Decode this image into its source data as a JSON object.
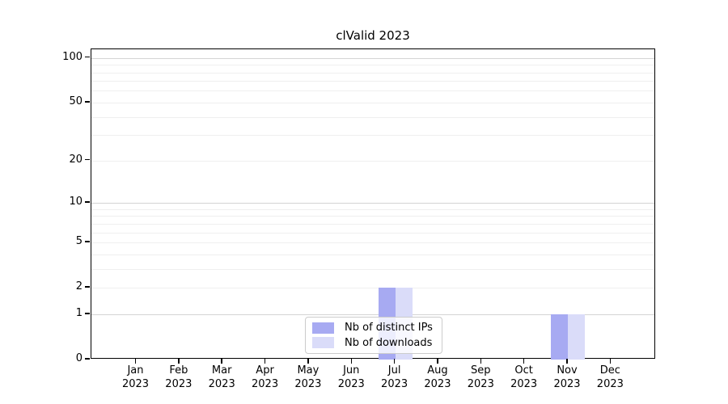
{
  "chart_data": {
    "type": "bar",
    "title": "clValid 2023",
    "months": [
      "Jan",
      "Feb",
      "Mar",
      "Apr",
      "May",
      "Jun",
      "Jul",
      "Aug",
      "Sep",
      "Oct",
      "Nov",
      "Dec"
    ],
    "year": "2023",
    "x_categories": [
      "Jan 2023",
      "Feb 2023",
      "Mar 2023",
      "Apr 2023",
      "May 2023",
      "Jun 2023",
      "Jul 2023",
      "Aug 2023",
      "Sep 2023",
      "Oct 2023",
      "Nov 2023",
      "Dec 2023"
    ],
    "series": [
      {
        "name": "Nb of distinct IPs",
        "color": "#a7aaf2",
        "values": [
          0,
          0,
          0,
          0,
          0,
          0,
          2,
          0,
          0,
          0,
          1,
          0
        ]
      },
      {
        "name": "Nb of downloads",
        "color": "#dadcf9",
        "values": [
          0,
          0,
          0,
          0,
          0,
          0,
          2,
          0,
          0,
          0,
          1,
          0
        ]
      }
    ],
    "yscale": "log1p",
    "yticks": [
      0,
      1,
      2,
      5,
      10,
      20,
      50,
      100
    ],
    "ylim": [
      0,
      115
    ],
    "xlabel": "",
    "ylabel": "",
    "grid": {
      "enabled": true,
      "major_values": [
        1,
        10,
        100
      ],
      "minor_values": [
        2,
        3,
        4,
        5,
        6,
        7,
        8,
        9,
        20,
        30,
        40,
        50,
        60,
        70,
        80,
        90
      ],
      "major_color": "#d4d4d4",
      "minor_color": "#efefef"
    },
    "legend": {
      "position": "lower center",
      "frame": true
    }
  }
}
